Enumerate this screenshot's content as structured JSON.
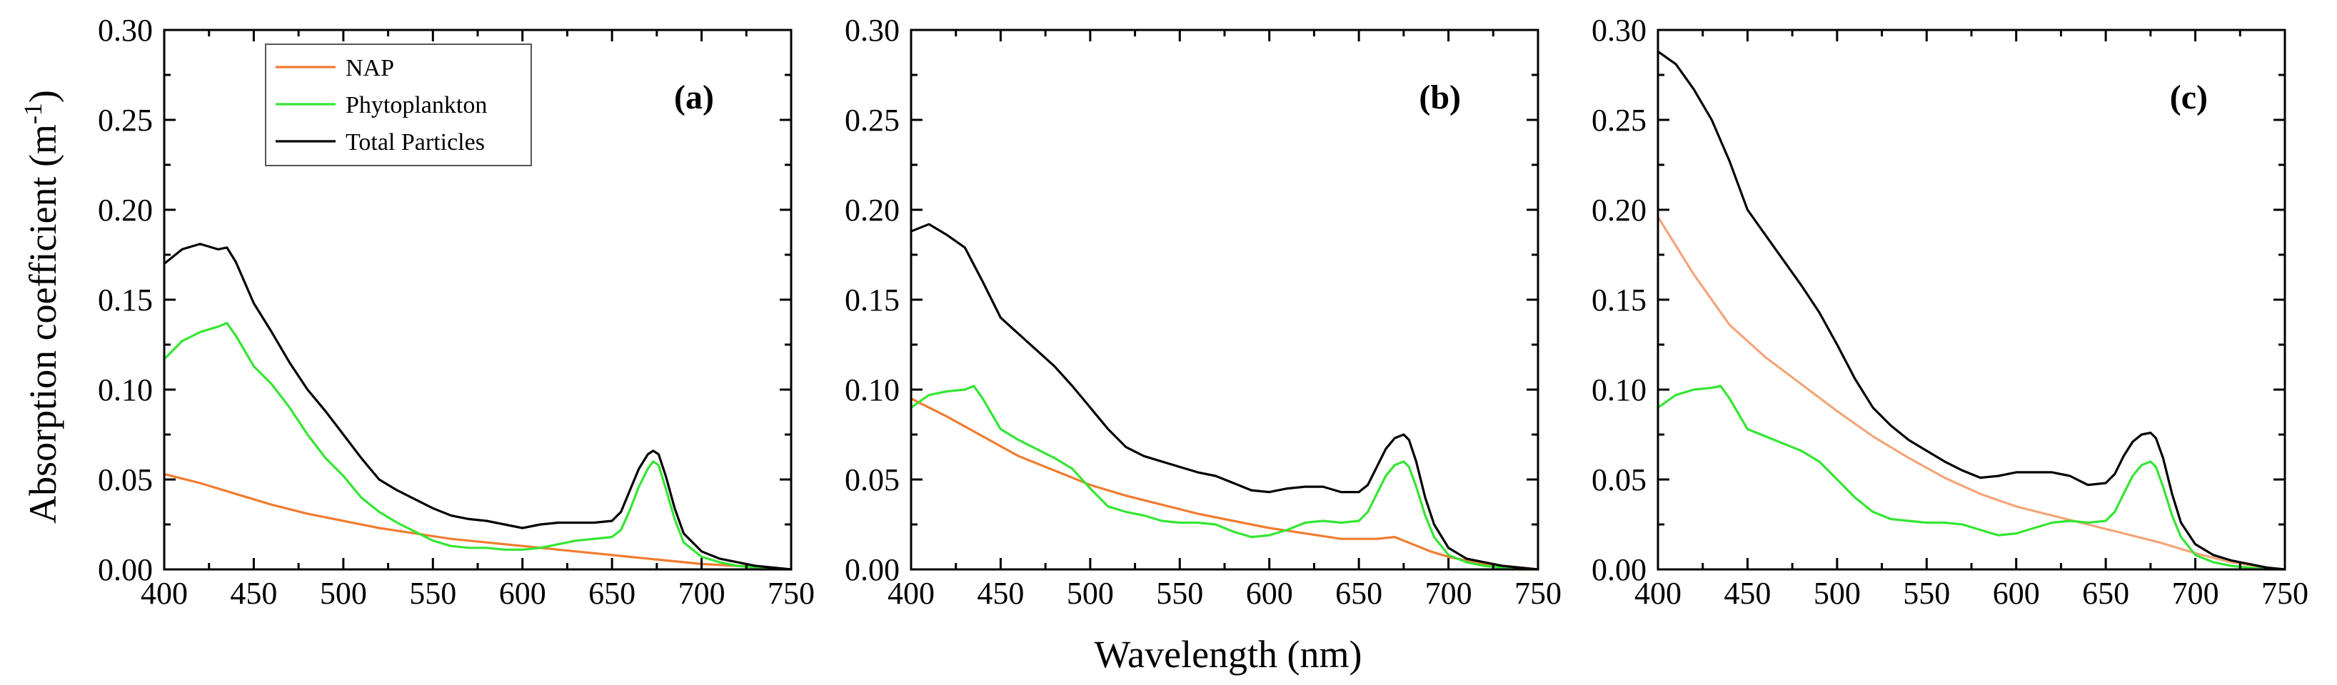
{
  "figure": {
    "ylabel_main": "Absorption coefficient (m",
    "ylabel_sup": "-1",
    "ylabel_tail": ")",
    "xlabel": "Wavelength (nm)"
  },
  "legend": {
    "position": "top-left of panel (a)",
    "entries": [
      {
        "name": "NAP",
        "color": "#f07c30"
      },
      {
        "name": "Phytoplankton",
        "color": "#33e633"
      },
      {
        "name": "Total Particles",
        "color": "#000000"
      }
    ]
  },
  "chart_data": [
    {
      "type": "line",
      "panel_label": "(a)",
      "xlim": [
        400,
        750
      ],
      "ylim": [
        0,
        0.3
      ],
      "xticks": [
        400,
        450,
        500,
        550,
        600,
        650,
        700,
        750
      ],
      "yticks": [
        0,
        0.05,
        0.1,
        0.15,
        0.2,
        0.25,
        0.3
      ],
      "xtick_labels": [
        "400",
        "450",
        "500",
        "550",
        "600",
        "650",
        "700",
        "750"
      ],
      "ytick_labels": [
        "0.00",
        "0.05",
        "0.10",
        "0.15",
        "0.20",
        "0.25",
        "0.30"
      ],
      "grid": false,
      "series": [
        {
          "name": "NAP",
          "color": "#f07c30",
          "x": [
            400,
            420,
            440,
            460,
            480,
            500,
            520,
            540,
            560,
            580,
            600,
            620,
            640,
            660,
            680,
            700,
            720,
            740,
            750
          ],
          "y": [
            0.053,
            0.048,
            0.042,
            0.036,
            0.031,
            0.027,
            0.023,
            0.02,
            0.017,
            0.015,
            0.013,
            0.011,
            0.009,
            0.007,
            0.005,
            0.003,
            0.002,
            0.001,
            0.0
          ]
        },
        {
          "name": "Phytoplankton",
          "color": "#33e633",
          "x": [
            400,
            410,
            420,
            430,
            435,
            440,
            450,
            460,
            470,
            480,
            490,
            500,
            510,
            520,
            530,
            540,
            550,
            560,
            570,
            580,
            590,
            600,
            610,
            620,
            630,
            640,
            650,
            655,
            660,
            665,
            670,
            673,
            676,
            680,
            685,
            690,
            700,
            710,
            720,
            730,
            740,
            750
          ],
          "y": [
            0.117,
            0.127,
            0.132,
            0.135,
            0.137,
            0.13,
            0.113,
            0.103,
            0.09,
            0.075,
            0.062,
            0.052,
            0.04,
            0.032,
            0.026,
            0.021,
            0.016,
            0.013,
            0.012,
            0.012,
            0.011,
            0.011,
            0.012,
            0.014,
            0.016,
            0.017,
            0.018,
            0.022,
            0.033,
            0.046,
            0.056,
            0.06,
            0.058,
            0.045,
            0.028,
            0.015,
            0.007,
            0.004,
            0.002,
            0.001,
            0.0,
            0.0
          ]
        },
        {
          "name": "Total Particles",
          "color": "#000000",
          "x": [
            400,
            410,
            420,
            430,
            435,
            440,
            450,
            460,
            470,
            480,
            490,
            500,
            510,
            520,
            530,
            540,
            550,
            560,
            570,
            580,
            590,
            600,
            610,
            620,
            630,
            640,
            650,
            655,
            660,
            665,
            670,
            673,
            676,
            680,
            685,
            690,
            700,
            710,
            720,
            730,
            740,
            750
          ],
          "y": [
            0.17,
            0.178,
            0.181,
            0.178,
            0.179,
            0.171,
            0.148,
            0.132,
            0.115,
            0.1,
            0.088,
            0.075,
            0.062,
            0.05,
            0.044,
            0.039,
            0.034,
            0.03,
            0.028,
            0.027,
            0.025,
            0.023,
            0.025,
            0.026,
            0.026,
            0.026,
            0.027,
            0.032,
            0.044,
            0.056,
            0.064,
            0.066,
            0.064,
            0.052,
            0.034,
            0.02,
            0.01,
            0.006,
            0.004,
            0.002,
            0.001,
            0.0
          ]
        }
      ]
    },
    {
      "type": "line",
      "panel_label": "(b)",
      "xlim": [
        400,
        750
      ],
      "ylim": [
        0,
        0.3
      ],
      "xticks": [
        400,
        450,
        500,
        550,
        600,
        650,
        700,
        750
      ],
      "yticks": [
        0,
        0.05,
        0.1,
        0.15,
        0.2,
        0.25,
        0.3
      ],
      "xtick_labels": [
        "400",
        "450",
        "500",
        "550",
        "600",
        "650",
        "700",
        "750"
      ],
      "ytick_labels": [
        "0.00",
        "0.05",
        "0.10",
        "0.15",
        "0.20",
        "0.25",
        "0.30"
      ],
      "grid": false,
      "series": [
        {
          "name": "NAP",
          "color": "#f07c30",
          "x": [
            400,
            420,
            440,
            460,
            480,
            500,
            520,
            540,
            560,
            580,
            600,
            620,
            640,
            660,
            670,
            680,
            690,
            700,
            720,
            740,
            750
          ],
          "y": [
            0.095,
            0.085,
            0.074,
            0.063,
            0.055,
            0.047,
            0.041,
            0.036,
            0.031,
            0.027,
            0.023,
            0.02,
            0.017,
            0.017,
            0.018,
            0.014,
            0.01,
            0.007,
            0.003,
            0.001,
            0.0
          ]
        },
        {
          "name": "Phytoplankton",
          "color": "#33e633",
          "x": [
            400,
            410,
            420,
            430,
            435,
            440,
            450,
            460,
            470,
            480,
            490,
            500,
            510,
            520,
            530,
            540,
            550,
            560,
            570,
            580,
            590,
            600,
            610,
            620,
            630,
            640,
            650,
            655,
            660,
            665,
            670,
            675,
            678,
            682,
            687,
            692,
            700,
            710,
            720,
            730,
            740,
            750
          ],
          "y": [
            0.09,
            0.097,
            0.099,
            0.1,
            0.102,
            0.095,
            0.078,
            0.072,
            0.067,
            0.062,
            0.056,
            0.045,
            0.035,
            0.032,
            0.03,
            0.027,
            0.026,
            0.026,
            0.025,
            0.021,
            0.018,
            0.019,
            0.022,
            0.026,
            0.027,
            0.026,
            0.027,
            0.032,
            0.042,
            0.052,
            0.058,
            0.06,
            0.057,
            0.046,
            0.03,
            0.018,
            0.008,
            0.004,
            0.002,
            0.001,
            0.0,
            0.0
          ]
        },
        {
          "name": "Total Particles",
          "color": "#000000",
          "x": [
            400,
            410,
            420,
            430,
            440,
            450,
            460,
            470,
            480,
            490,
            500,
            510,
            520,
            530,
            540,
            550,
            560,
            570,
            580,
            590,
            600,
            610,
            620,
            630,
            640,
            650,
            655,
            660,
            665,
            670,
            675,
            678,
            682,
            687,
            692,
            700,
            710,
            720,
            730,
            740,
            750
          ],
          "y": [
            0.188,
            0.192,
            0.186,
            0.179,
            0.16,
            0.14,
            0.131,
            0.122,
            0.113,
            0.102,
            0.09,
            0.078,
            0.068,
            0.063,
            0.06,
            0.057,
            0.054,
            0.052,
            0.048,
            0.044,
            0.043,
            0.045,
            0.046,
            0.046,
            0.043,
            0.043,
            0.047,
            0.057,
            0.067,
            0.073,
            0.075,
            0.072,
            0.06,
            0.04,
            0.025,
            0.012,
            0.006,
            0.004,
            0.002,
            0.001,
            0.0
          ]
        }
      ]
    },
    {
      "type": "line",
      "panel_label": "(c)",
      "xlim": [
        400,
        750
      ],
      "ylim": [
        0,
        0.3
      ],
      "xticks": [
        400,
        450,
        500,
        550,
        600,
        650,
        700,
        750
      ],
      "yticks": [
        0,
        0.05,
        0.1,
        0.15,
        0.2,
        0.25,
        0.3
      ],
      "xtick_labels": [
        "400",
        "450",
        "500",
        "550",
        "600",
        "650",
        "700",
        "750"
      ],
      "ytick_labels": [
        "0.00",
        "0.05",
        "0.10",
        "0.15",
        "0.20",
        "0.25",
        "0.30"
      ],
      "grid": false,
      "series": [
        {
          "name": "NAP",
          "color": "#f4a57a",
          "x": [
            400,
            420,
            440,
            460,
            480,
            500,
            520,
            540,
            560,
            580,
            600,
            620,
            640,
            660,
            680,
            700,
            720,
            740,
            750
          ],
          "y": [
            0.196,
            0.164,
            0.136,
            0.118,
            0.103,
            0.088,
            0.074,
            0.062,
            0.051,
            0.042,
            0.035,
            0.03,
            0.025,
            0.02,
            0.015,
            0.009,
            0.004,
            0.001,
            0.0
          ]
        },
        {
          "name": "Phytoplankton",
          "color": "#33e633",
          "x": [
            400,
            410,
            420,
            430,
            435,
            440,
            450,
            460,
            470,
            480,
            490,
            500,
            510,
            520,
            530,
            540,
            550,
            560,
            570,
            580,
            590,
            600,
            610,
            620,
            630,
            640,
            650,
            655,
            660,
            665,
            670,
            675,
            678,
            682,
            687,
            692,
            700,
            710,
            720,
            730,
            740,
            750
          ],
          "y": [
            0.09,
            0.097,
            0.1,
            0.101,
            0.102,
            0.095,
            0.078,
            0.074,
            0.07,
            0.066,
            0.06,
            0.05,
            0.04,
            0.032,
            0.028,
            0.027,
            0.026,
            0.026,
            0.025,
            0.022,
            0.019,
            0.02,
            0.023,
            0.026,
            0.027,
            0.026,
            0.027,
            0.032,
            0.042,
            0.052,
            0.058,
            0.06,
            0.057,
            0.046,
            0.03,
            0.018,
            0.008,
            0.004,
            0.002,
            0.001,
            0.0,
            0.0
          ]
        },
        {
          "name": "Total Particles",
          "color": "#000000",
          "x": [
            400,
            410,
            420,
            430,
            440,
            450,
            460,
            470,
            480,
            490,
            500,
            510,
            520,
            530,
            540,
            550,
            560,
            570,
            580,
            590,
            600,
            610,
            620,
            630,
            640,
            650,
            655,
            660,
            665,
            670,
            675,
            678,
            682,
            687,
            692,
            700,
            710,
            720,
            730,
            740,
            750
          ],
          "y": [
            0.288,
            0.281,
            0.267,
            0.25,
            0.227,
            0.2,
            0.186,
            0.172,
            0.158,
            0.143,
            0.125,
            0.106,
            0.09,
            0.08,
            0.072,
            0.066,
            0.06,
            0.055,
            0.051,
            0.052,
            0.054,
            0.054,
            0.054,
            0.052,
            0.047,
            0.048,
            0.053,
            0.063,
            0.071,
            0.075,
            0.076,
            0.073,
            0.062,
            0.042,
            0.026,
            0.014,
            0.008,
            0.005,
            0.003,
            0.001,
            0.0
          ]
        }
      ]
    }
  ]
}
